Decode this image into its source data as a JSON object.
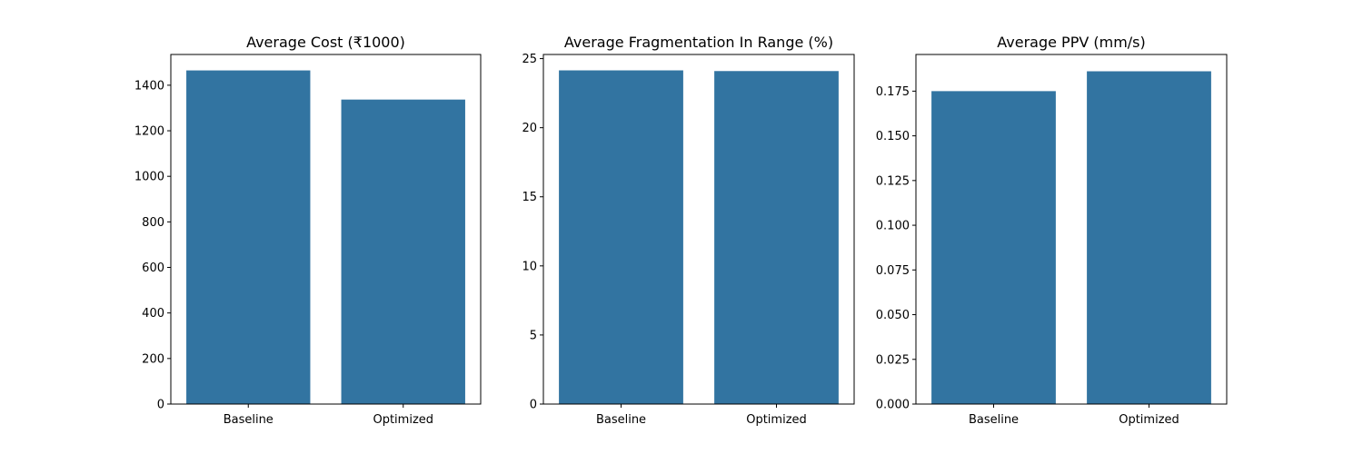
{
  "chart_data": [
    {
      "type": "bar",
      "title": "Average Cost (₹1000)",
      "xlabel": "",
      "ylabel": "",
      "categories": [
        "Baseline",
        "Optimized"
      ],
      "values": [
        1465,
        1337
      ],
      "ylim": [
        0,
        1535
      ],
      "yticks": [
        0,
        200,
        400,
        600,
        800,
        1000,
        1200,
        1400
      ],
      "bar_color": "#3274a1"
    },
    {
      "type": "bar",
      "title": "Average Fragmentation In Range (%)",
      "xlabel": "",
      "ylabel": "",
      "categories": [
        "Baseline",
        "Optimized"
      ],
      "values": [
        24.15,
        24.1
      ],
      "ylim": [
        0,
        25.3
      ],
      "yticks": [
        0,
        5,
        10,
        15,
        20,
        25
      ],
      "bar_color": "#3274a1"
    },
    {
      "type": "bar",
      "title": "Average PPV (mm/s)",
      "xlabel": "",
      "ylabel": "",
      "categories": [
        "Baseline",
        "Optimized"
      ],
      "values": [
        0.175,
        0.1861
      ],
      "ylim": [
        0,
        0.1955
      ],
      "yticks": [
        0.0,
        0.025,
        0.05,
        0.075,
        0.1,
        0.125,
        0.15,
        0.175
      ],
      "ytick_labels": [
        "0.000",
        "0.025",
        "0.050",
        "0.075",
        "0.100",
        "0.125",
        "0.150",
        "0.175"
      ],
      "bar_color": "#3274a1"
    }
  ]
}
